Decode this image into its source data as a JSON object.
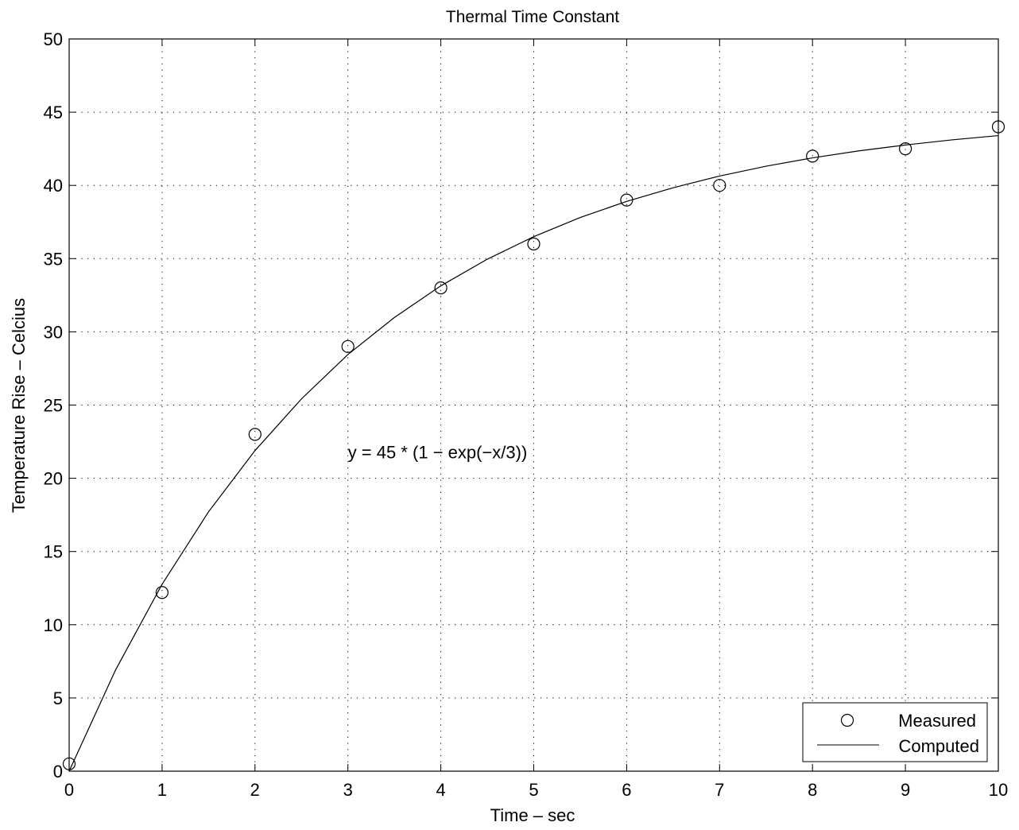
{
  "chart_data": {
    "type": "line",
    "title": "Thermal Time Constant",
    "xlabel": "Time – sec",
    "ylabel": "Temperature Rise – Celcius",
    "xlim": [
      0,
      10
    ],
    "ylim": [
      0,
      50
    ],
    "xticks": [
      0,
      1,
      2,
      3,
      4,
      5,
      6,
      7,
      8,
      9,
      10
    ],
    "yticks": [
      0,
      5,
      10,
      15,
      20,
      25,
      30,
      35,
      40,
      45,
      50
    ],
    "grid": true,
    "legend_position": "bottom-right",
    "annotation": {
      "text": "y = 45 * (1 − exp(−x/3))",
      "x": 3.0,
      "y": 21.8
    },
    "series": [
      {
        "name": "Measured",
        "marker": "circle",
        "line": "none",
        "x": [
          0,
          1,
          2,
          3,
          4,
          5,
          6,
          7,
          8,
          9,
          10
        ],
        "y": [
          0.5,
          12.2,
          23.0,
          29.0,
          33.0,
          36.0,
          39.0,
          40.0,
          42.0,
          42.5,
          44.0
        ]
      },
      {
        "name": "Computed",
        "marker": "none",
        "line": "solid",
        "x": [
          0,
          0.5,
          1,
          1.5,
          2,
          2.5,
          3,
          3.5,
          4,
          4.5,
          5,
          5.5,
          6,
          6.5,
          7,
          7.5,
          8,
          8.5,
          9,
          9.5,
          10
        ],
        "y": [
          0,
          6.92,
          12.76,
          17.71,
          21.89,
          25.42,
          28.45,
          30.98,
          33.14,
          34.96,
          36.5,
          37.81,
          38.91,
          39.84,
          40.64,
          41.31,
          41.88,
          42.36,
          42.76,
          43.11,
          43.4
        ]
      }
    ]
  },
  "colors": {
    "axis": "#000000",
    "grid": "#000000",
    "background": "#ffffff"
  }
}
